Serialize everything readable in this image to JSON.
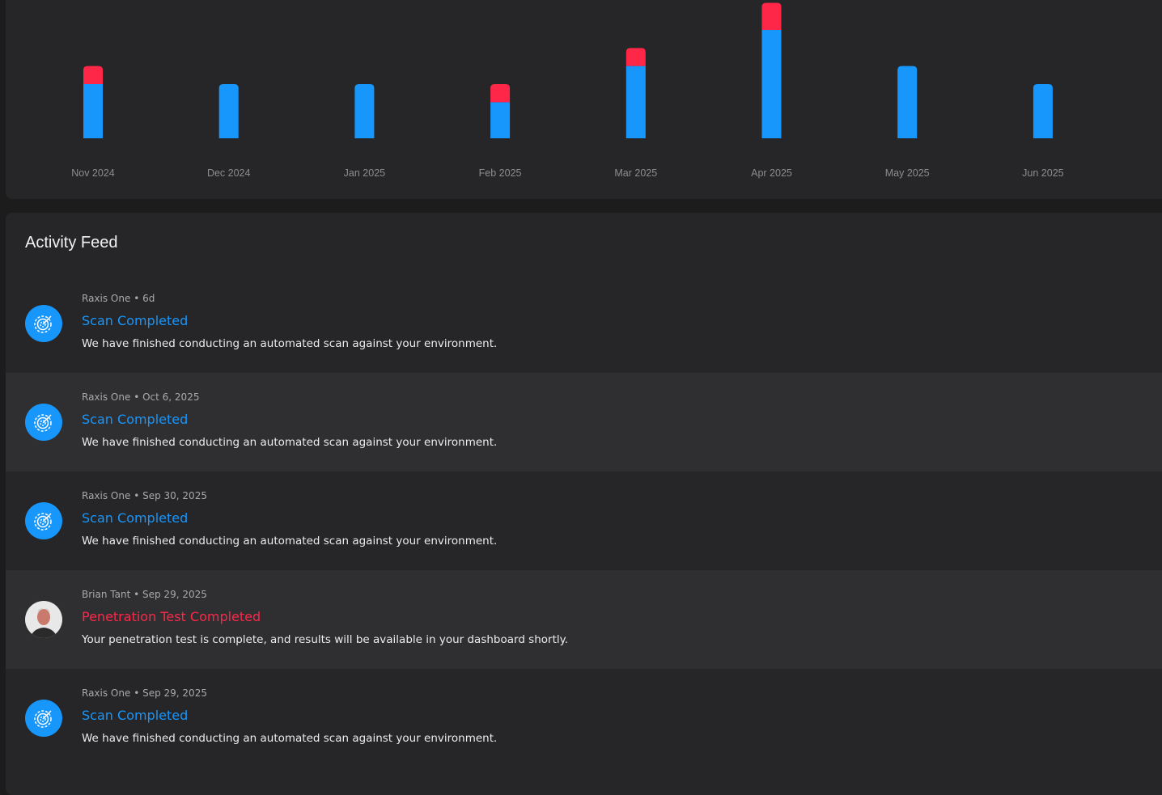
{
  "chart_data": {
    "type": "bar",
    "stacked": true,
    "categories": [
      "Nov 2024",
      "Dec 2024",
      "Jan 2025",
      "Feb 2025",
      "Mar 2025",
      "Apr 2025",
      "May 2025",
      "Jun 2025"
    ],
    "series": [
      {
        "color": "#1797fb",
        "values": [
          3,
          3,
          3,
          2,
          4,
          6,
          4,
          3
        ]
      },
      {
        "color": "#ff2748",
        "values": [
          1,
          0,
          0,
          1,
          1,
          1.5,
          0,
          0
        ]
      }
    ],
    "title": "",
    "xlabel": "",
    "ylabel": "",
    "grid": false
  },
  "feed": {
    "title": "Activity Feed",
    "items": [
      {
        "author": "Raxis One",
        "time": "6d",
        "title": "Scan Completed",
        "type": "scan",
        "description": "We have finished conducting an automated scan against your environment."
      },
      {
        "author": "Raxis One",
        "time": "Oct 6, 2025",
        "title": "Scan Completed",
        "type": "scan",
        "description": "We have finished conducting an automated scan against your environment."
      },
      {
        "author": "Raxis One",
        "time": "Sep 30, 2025",
        "title": "Scan Completed",
        "type": "scan",
        "description": "We have finished conducting an automated scan against your environment."
      },
      {
        "author": "Brian Tant",
        "time": "Sep 29, 2025",
        "title": "Penetration Test Completed",
        "type": "pentest",
        "description": "Your penetration test is complete, and results will be available in your dashboard shortly."
      },
      {
        "author": "Raxis One",
        "time": "Sep 29, 2025",
        "title": "Scan Completed",
        "type": "scan",
        "description": "We have finished conducting an automated scan against your environment."
      }
    ]
  },
  "colors": {
    "scan": "#1797fb",
    "pentest": "#ff2748"
  }
}
